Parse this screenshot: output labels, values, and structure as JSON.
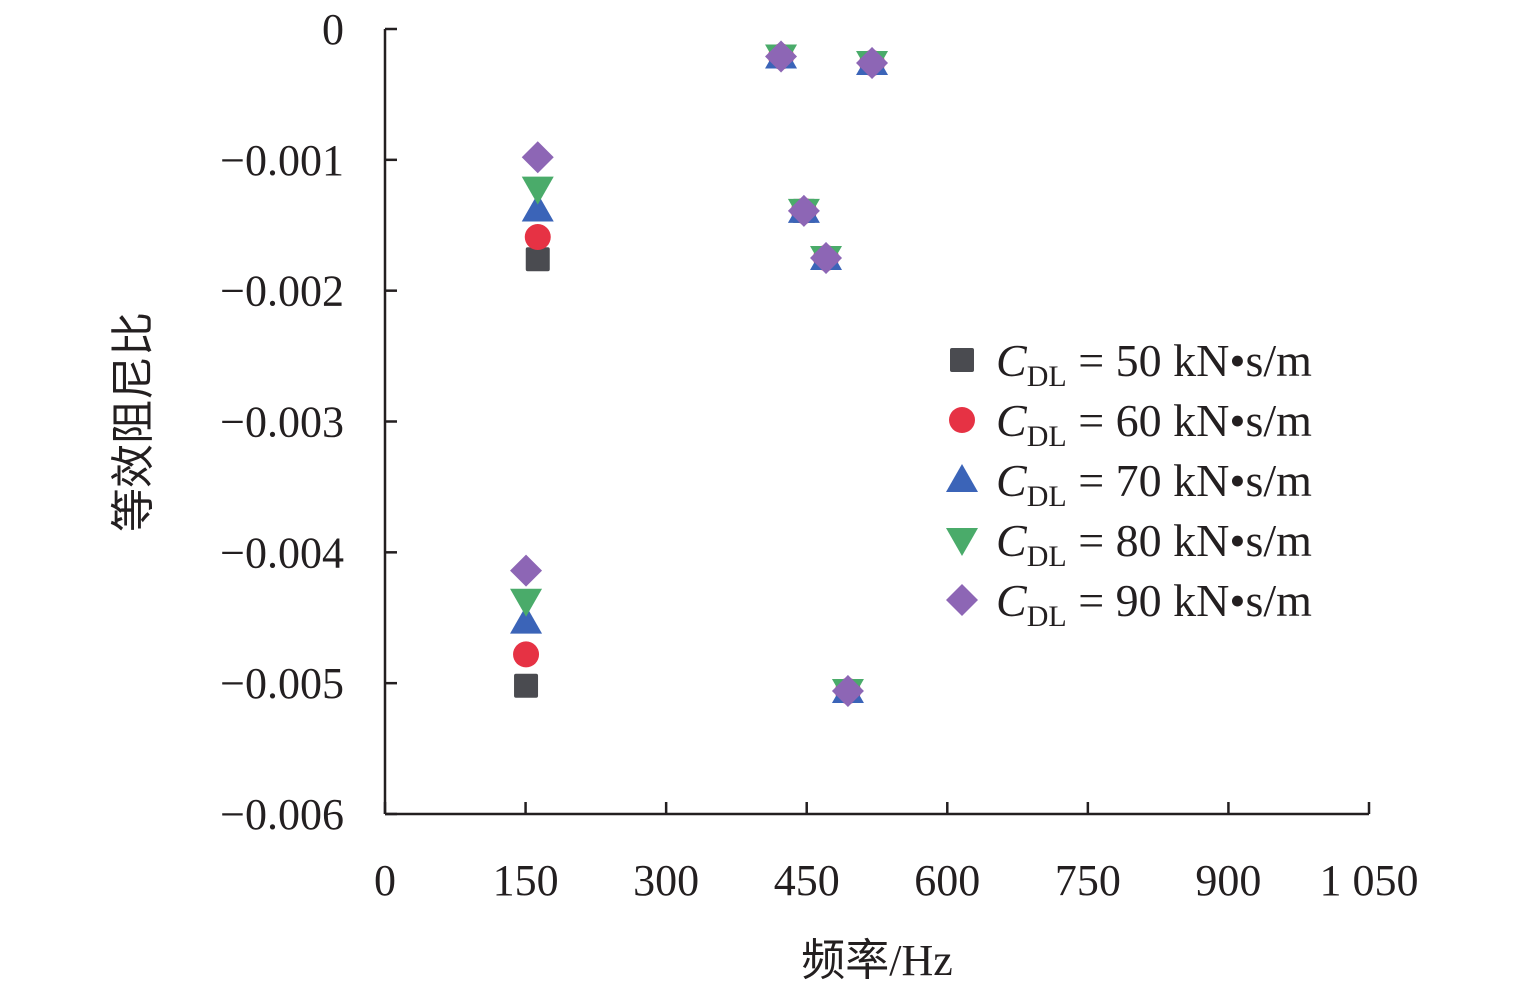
{
  "chart_data": {
    "type": "scatter",
    "title": "",
    "xlabel": "频率/Hz",
    "ylabel": "等效阻尼比",
    "xlim": [
      0,
      1050
    ],
    "ylim": [
      -0.006,
      0
    ],
    "xticks": [
      0,
      150,
      300,
      450,
      600,
      750,
      900,
      1050
    ],
    "xtick_labels": [
      "0",
      "150",
      "300",
      "450",
      "600",
      "750",
      "900",
      "1 050"
    ],
    "yticks": [
      0,
      -0.001,
      -0.002,
      -0.003,
      -0.004,
      -0.005,
      -0.006
    ],
    "ytick_labels": [
      "0",
      "−0.001",
      "−0.002",
      "−0.003",
      "−0.004",
      "−0.005",
      "−0.006"
    ],
    "grid": false,
    "legend_position": "right",
    "series": [
      {
        "name": "C_DL = 50 kN•s/m",
        "var": "C",
        "sub": "DL",
        "rest": " = 50 kN•s/m",
        "marker": "square",
        "color": "#4a4b50",
        "points": [
          [
            163,
            -0.00176
          ],
          [
            150.5,
            -0.00502
          ],
          [
            422.6,
            -0.00021
          ],
          [
            519.7,
            -0.00026
          ],
          [
            447,
            -0.00139
          ],
          [
            470.6,
            -0.00175
          ],
          [
            494,
            -0.00506
          ]
        ]
      },
      {
        "name": "C_DL = 60 kN•s/m",
        "var": "C",
        "sub": "DL",
        "rest": " = 60 kN•s/m",
        "marker": "circle",
        "color": "#e63244",
        "points": [
          [
            163,
            -0.00159
          ],
          [
            150.5,
            -0.00478
          ],
          [
            422.6,
            -0.00021
          ],
          [
            519.7,
            -0.00026
          ],
          [
            447,
            -0.00139
          ],
          [
            470.6,
            -0.00175
          ],
          [
            494,
            -0.00506
          ]
        ]
      },
      {
        "name": "C_DL = 70 kN•s/m",
        "var": "C",
        "sub": "DL",
        "rest": " = 70 kN•s/m",
        "marker": "triangle-up",
        "color": "#3b64b8",
        "points": [
          [
            163,
            -0.00138
          ],
          [
            150.5,
            -0.00453
          ],
          [
            422.6,
            -0.00021
          ],
          [
            519.7,
            -0.00026
          ],
          [
            447,
            -0.00139
          ],
          [
            470.6,
            -0.00175
          ],
          [
            494,
            -0.00506
          ]
        ]
      },
      {
        "name": "C_DL = 80 kN•s/m",
        "var": "C",
        "sub": "DL",
        "rest": " = 80 kN•s/m",
        "marker": "triangle-down",
        "color": "#4aab6a",
        "points": [
          [
            163,
            -0.00122
          ],
          [
            150.5,
            -0.00437
          ],
          [
            422.6,
            -0.00021
          ],
          [
            519.7,
            -0.00026
          ],
          [
            447,
            -0.00139
          ],
          [
            470.6,
            -0.00175
          ],
          [
            494,
            -0.00506
          ]
        ]
      },
      {
        "name": "C_DL = 90 kN•s/m",
        "var": "C",
        "sub": "DL",
        "rest": " = 90 kN•s/m",
        "marker": "diamond",
        "color": "#8d66b5",
        "points": [
          [
            163,
            -0.00098
          ],
          [
            150.5,
            -0.00414
          ],
          [
            422.6,
            -0.00021
          ],
          [
            519.7,
            -0.00026
          ],
          [
            447,
            -0.00139
          ],
          [
            470.6,
            -0.00175
          ],
          [
            494,
            -0.00506
          ]
        ]
      }
    ]
  }
}
